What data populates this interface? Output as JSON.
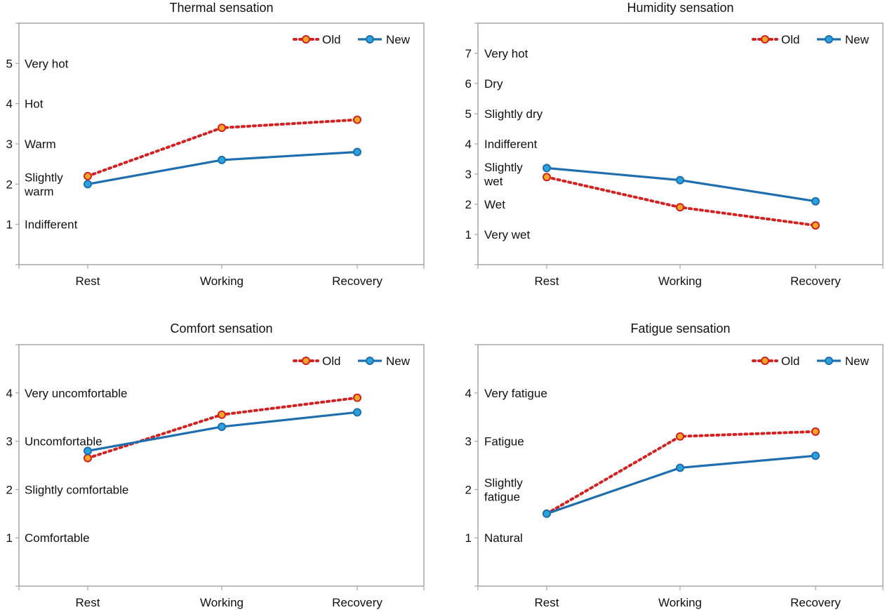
{
  "colors": {
    "old": "#d32020",
    "old_marker_fill": "#f5a623",
    "new": "#1f6fb0",
    "new_marker_fill": "#2aa3dc",
    "frame": "#a6a6a6"
  },
  "chart_data": [
    {
      "type": "line",
      "title": "Thermal sensation",
      "categories": [
        "Rest",
        "Working",
        "Recovery"
      ],
      "ylim": [
        0,
        6
      ],
      "yticks": [
        "1",
        "2",
        "3",
        "4",
        "5"
      ],
      "levels": [
        {
          "lines": [
            "Indifferent"
          ],
          "value": 1
        },
        {
          "lines": [
            "Slightly",
            "warm"
          ],
          "value": 2
        },
        {
          "lines": [
            "Warm"
          ],
          "value": 3
        },
        {
          "lines": [
            "Hot"
          ],
          "value": 4
        },
        {
          "lines": [
            "Very hot"
          ],
          "value": 5
        }
      ],
      "legend": "top-right",
      "series": [
        {
          "name": "Old",
          "values": [
            2.2,
            3.4,
            3.6
          ]
        },
        {
          "name": "New",
          "values": [
            2.0,
            2.6,
            2.8
          ]
        }
      ]
    },
    {
      "type": "line",
      "title": "Humidity sensation",
      "categories": [
        "Rest",
        "Working",
        "Recovery"
      ],
      "ylim": [
        0,
        8
      ],
      "yticks": [
        "1",
        "2",
        "3",
        "4",
        "5",
        "6",
        "7"
      ],
      "levels": [
        {
          "lines": [
            "Very wet"
          ],
          "value": 1
        },
        {
          "lines": [
            "Wet"
          ],
          "value": 2
        },
        {
          "lines": [
            "Slightly",
            "wet"
          ],
          "value": 3
        },
        {
          "lines": [
            "Indifferent"
          ],
          "value": 4
        },
        {
          "lines": [
            "Slightly dry"
          ],
          "value": 5
        },
        {
          "lines": [
            "Dry"
          ],
          "value": 6
        },
        {
          "lines": [
            "Very hot"
          ],
          "value": 7
        }
      ],
      "legend": "top-right",
      "series": [
        {
          "name": "Old",
          "values": [
            2.9,
            1.9,
            1.3
          ]
        },
        {
          "name": "New",
          "values": [
            3.2,
            2.8,
            2.1
          ]
        }
      ]
    },
    {
      "type": "line",
      "title": "Comfort sensation",
      "categories": [
        "Rest",
        "Working",
        "Recovery"
      ],
      "ylim": [
        0,
        5
      ],
      "yticks": [
        "1",
        "2",
        "3",
        "4"
      ],
      "levels": [
        {
          "lines": [
            "Comfortable"
          ],
          "value": 1
        },
        {
          "lines": [
            "Slightly comfortable"
          ],
          "value": 2
        },
        {
          "lines": [
            "Uncomfortable"
          ],
          "value": 3
        },
        {
          "lines": [
            "Very uncomfortable"
          ],
          "value": 4
        }
      ],
      "legend": "top-right",
      "series": [
        {
          "name": "Old",
          "values": [
            2.65,
            3.55,
            3.9
          ]
        },
        {
          "name": "New",
          "values": [
            2.8,
            3.3,
            3.6
          ]
        }
      ]
    },
    {
      "type": "line",
      "title": "Fatigue sensation",
      "categories": [
        "Rest",
        "Working",
        "Recovery"
      ],
      "ylim": [
        0,
        5
      ],
      "yticks": [
        "1",
        "2",
        "3",
        "4"
      ],
      "levels": [
        {
          "lines": [
            "Natural"
          ],
          "value": 1
        },
        {
          "lines": [
            "Slightly",
            "fatigue"
          ],
          "value": 2
        },
        {
          "lines": [
            "Fatigue"
          ],
          "value": 3
        },
        {
          "lines": [
            "Very fatigue"
          ],
          "value": 4
        }
      ],
      "legend": "top-right",
      "series": [
        {
          "name": "Old",
          "values": [
            1.5,
            3.1,
            3.2
          ]
        },
        {
          "name": "New",
          "values": [
            1.5,
            2.45,
            2.7
          ]
        }
      ]
    }
  ]
}
